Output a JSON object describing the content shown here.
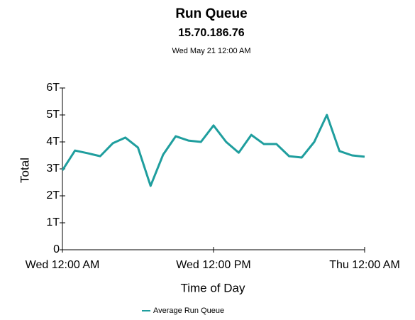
{
  "chart_data": {
    "type": "line",
    "title": "Run Queue",
    "subtitle": "15.70.186.76",
    "date_label": "Wed May 21 12:00 AM",
    "x_label": "Time of Day",
    "y_label": "Total",
    "x": [
      0,
      1,
      2,
      3,
      4,
      5,
      6,
      7,
      8,
      9,
      10,
      11,
      12,
      13,
      14,
      15,
      16,
      17,
      18,
      19,
      20,
      21,
      22,
      23,
      24
    ],
    "series": [
      {
        "name": "Average Run Queue",
        "color": "#1f9e9e",
        "values": [
          2.95,
          3.68,
          3.58,
          3.47,
          3.95,
          4.16,
          3.79,
          2.37,
          3.53,
          4.21,
          4.05,
          4.0,
          4.61,
          4.0,
          3.6,
          4.26,
          3.92,
          3.92,
          3.47,
          3.42,
          4.0,
          5.0,
          3.66,
          3.5,
          3.45
        ]
      }
    ],
    "xlim": [
      0,
      24
    ],
    "xticks": [
      {
        "value": 0,
        "label": "Wed 12:00 AM"
      },
      {
        "value": 12,
        "label": "Wed 12:00 PM"
      },
      {
        "value": 24,
        "label": "Thu 12:00 AM"
      }
    ],
    "ylim": [
      0,
      6
    ],
    "yticks": [
      0,
      {
        "value": 1,
        "label": "1T"
      },
      {
        "value": 2,
        "label": "2T"
      },
      {
        "value": 3,
        "label": "3T"
      },
      {
        "value": 4,
        "label": "4T"
      },
      {
        "value": 5,
        "label": "5T"
      },
      {
        "value": 6,
        "label": "6T"
      }
    ],
    "grid": false,
    "legend": "bottom"
  }
}
